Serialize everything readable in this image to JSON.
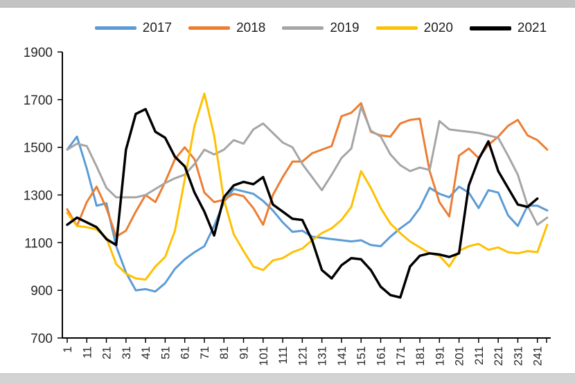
{
  "page": {
    "background": "#ffffff",
    "top_edge_color": "#c3c3c3",
    "bottom_edge_color": "#d3d3d3",
    "axis_color": "#000000",
    "label_color": "#262626"
  },
  "chart_data": {
    "type": "line",
    "title": "",
    "legend_position": "top",
    "grid": false,
    "ylim": [
      700,
      1900
    ],
    "xlim": [
      1,
      248
    ],
    "y_ticks": [
      700,
      900,
      1100,
      1300,
      1500,
      1700,
      1900
    ],
    "x_tick_labels": [
      1,
      11,
      21,
      31,
      41,
      51,
      61,
      71,
      81,
      91,
      101,
      111,
      121,
      131,
      141,
      151,
      161,
      171,
      181,
      191,
      201,
      211,
      221,
      231,
      241
    ],
    "x": [
      1,
      6,
      11,
      16,
      21,
      26,
      31,
      36,
      41,
      46,
      51,
      56,
      61,
      66,
      71,
      76,
      81,
      86,
      91,
      96,
      101,
      106,
      111,
      116,
      121,
      126,
      131,
      136,
      141,
      146,
      151,
      156,
      161,
      166,
      171,
      176,
      181,
      186,
      191,
      196,
      201,
      206,
      211,
      216,
      221,
      226,
      231,
      236,
      241,
      246
    ],
    "series": [
      {
        "name": "2017",
        "color": "#5B9BD5",
        "values": [
          1490,
          1545,
          1410,
          1255,
          1265,
          1085,
          975,
          900,
          905,
          895,
          930,
          990,
          1030,
          1060,
          1085,
          1170,
          1270,
          1325,
          1315,
          1305,
          1275,
          1235,
          1185,
          1145,
          1150,
          1125,
          1120,
          1115,
          1110,
          1105,
          1110,
          1090,
          1085,
          1125,
          1160,
          1190,
          1245,
          1330,
          1305,
          1290,
          1335,
          1310,
          1245,
          1320,
          1310,
          1215,
          1170,
          1255,
          1255,
          1235
        ]
      },
      {
        "name": "2018",
        "color": "#ED7D31",
        "values": [
          1240,
          1170,
          1270,
          1335,
          1245,
          1125,
          1150,
          1230,
          1300,
          1270,
          1355,
          1450,
          1500,
          1450,
          1310,
          1270,
          1280,
          1305,
          1295,
          1245,
          1175,
          1300,
          1375,
          1440,
          1440,
          1475,
          1490,
          1505,
          1630,
          1645,
          1685,
          1565,
          1550,
          1545,
          1600,
          1615,
          1620,
          1400,
          1270,
          1210,
          1465,
          1495,
          1455,
          1510,
          1545,
          1590,
          1615,
          1550,
          1530,
          1490
        ]
      },
      {
        "name": "2019",
        "color": "#A5A5A5",
        "values": [
          1490,
          1515,
          1505,
          1420,
          1330,
          1290,
          1290,
          1290,
          1300,
          1325,
          1350,
          1370,
          1385,
          1430,
          1490,
          1470,
          1490,
          1530,
          1515,
          1575,
          1600,
          1560,
          1520,
          1500,
          1430,
          1375,
          1320,
          1385,
          1455,
          1495,
          1670,
          1570,
          1545,
          1470,
          1425,
          1400,
          1415,
          1405,
          1610,
          1575,
          1570,
          1565,
          1560,
          1550,
          1540,
          1465,
          1385,
          1255,
          1175,
          1205
        ]
      },
      {
        "name": "2020",
        "color": "#FFC000",
        "values": [
          1225,
          1170,
          1165,
          1155,
          1120,
          1010,
          970,
          950,
          945,
          1000,
          1040,
          1150,
          1365,
          1590,
          1725,
          1550,
          1280,
          1135,
          1065,
          1000,
          985,
          1025,
          1035,
          1060,
          1075,
          1110,
          1140,
          1160,
          1195,
          1250,
          1400,
          1330,
          1245,
          1180,
          1140,
          1105,
          1080,
          1055,
          1045,
          1000,
          1065,
          1085,
          1095,
          1070,
          1080,
          1060,
          1055,
          1065,
          1060,
          1175
        ]
      },
      {
        "name": "2021",
        "color": "#000000",
        "values": [
          1175,
          1205,
          1185,
          1165,
          1115,
          1090,
          1490,
          1640,
          1660,
          1565,
          1540,
          1460,
          1420,
          1310,
          1230,
          1130,
          1290,
          1340,
          1355,
          1345,
          1375,
          1260,
          1230,
          1200,
          1195,
          1110,
          985,
          950,
          1005,
          1035,
          1030,
          985,
          915,
          880,
          870,
          1000,
          1045,
          1055,
          1050,
          1040,
          1055,
          1340,
          1450,
          1525,
          1400,
          1330,
          1260,
          1250,
          1285,
          null
        ]
      }
    ]
  }
}
